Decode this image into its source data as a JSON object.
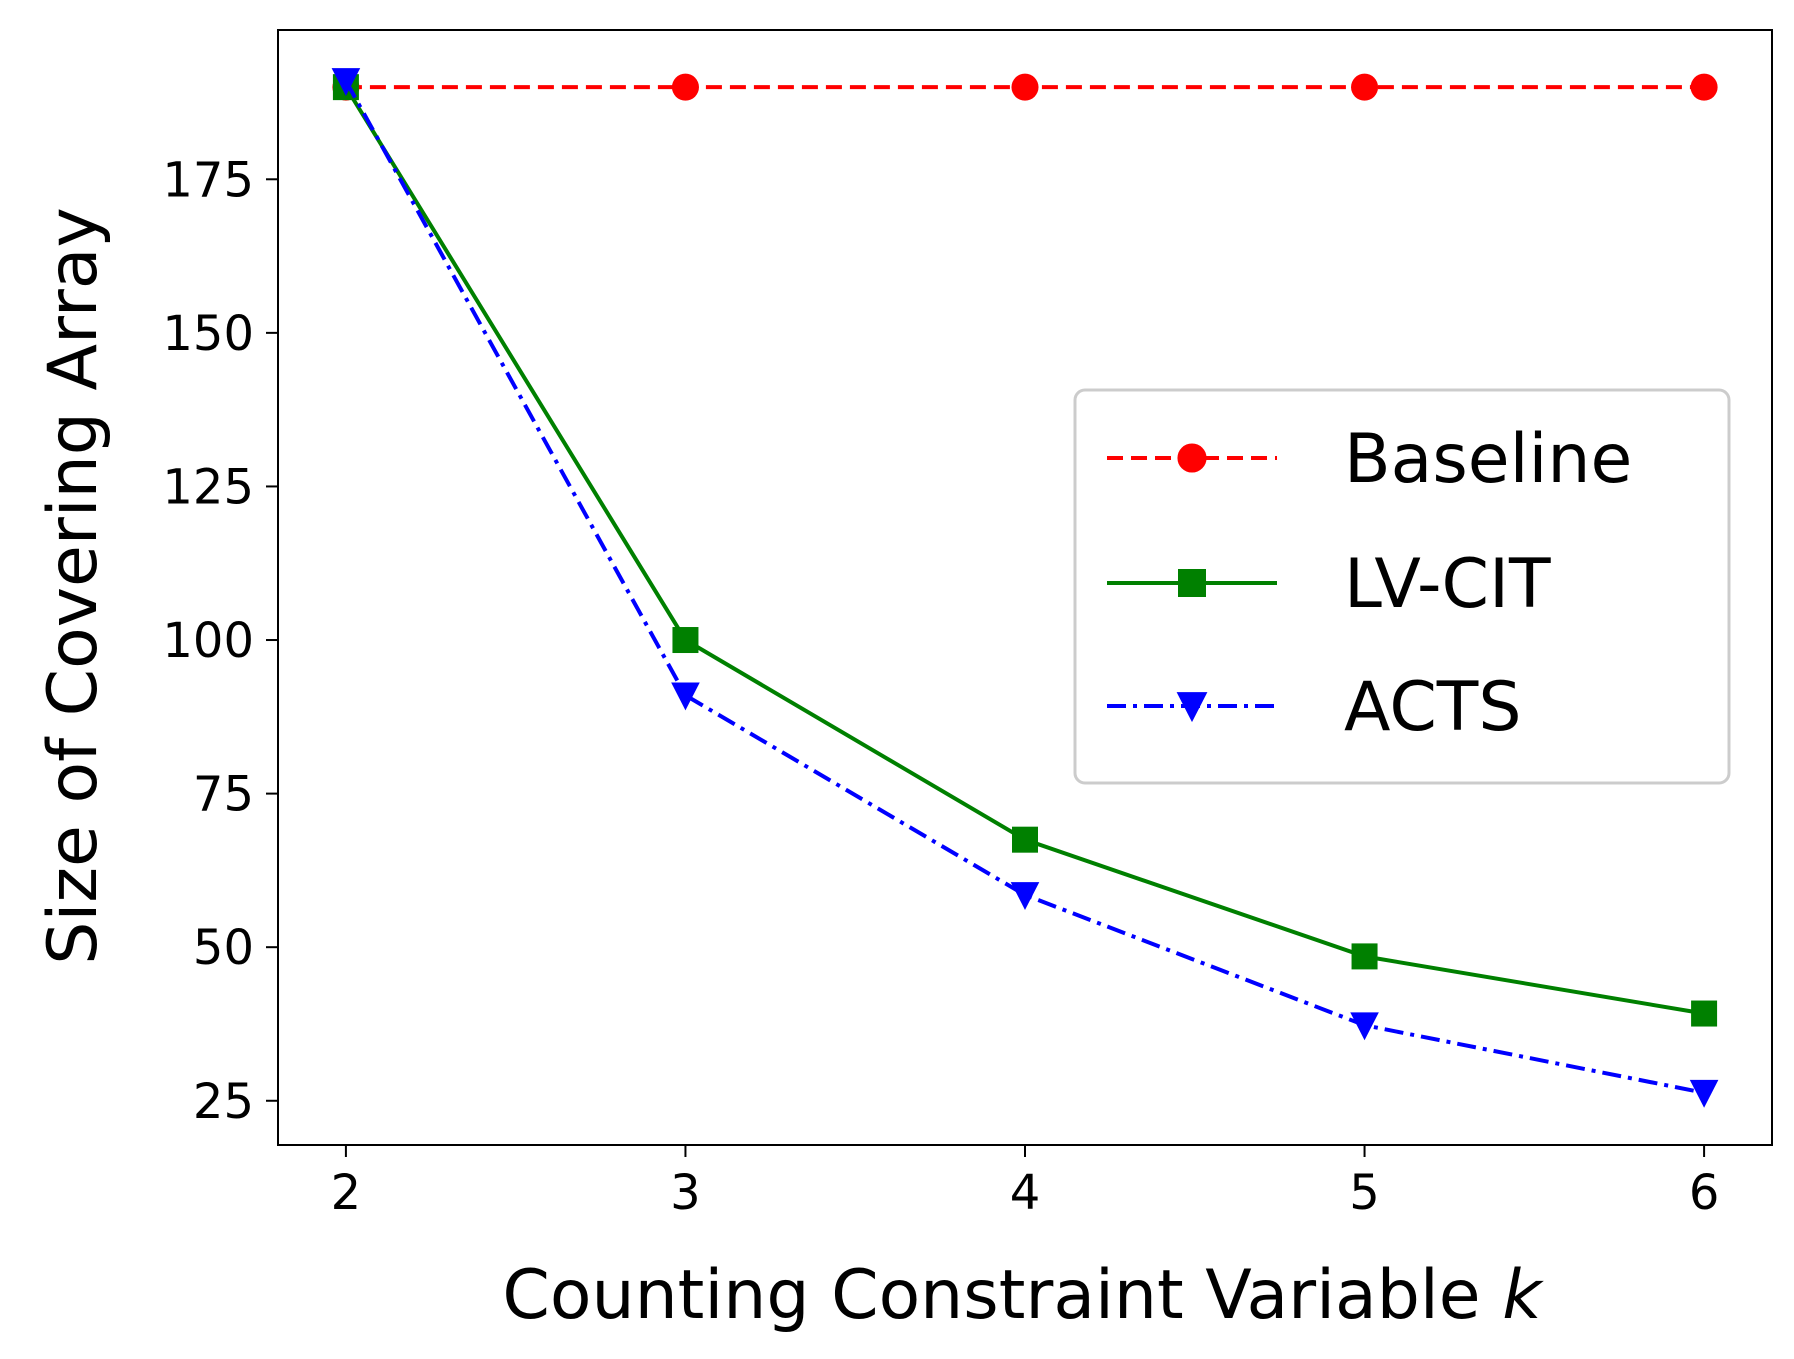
{
  "chart_data": {
    "type": "line",
    "xlabel": "Counting Constraint Variable",
    "xlabel_var": "k",
    "ylabel": "Size of Covering Array",
    "x": [
      2,
      3,
      4,
      5,
      6
    ],
    "xticks": [
      "2",
      "3",
      "4",
      "5",
      "6"
    ],
    "yticks": [
      "25",
      "50",
      "75",
      "100",
      "125",
      "150",
      "175"
    ],
    "xlim": [
      1.8,
      6.2
    ],
    "ylim": [
      17.8,
      199.3
    ],
    "grid": false,
    "legend_position": "center-right",
    "series": [
      {
        "name": "Baseline",
        "values": [
          190,
          190,
          190,
          190,
          190
        ],
        "color": "#ff0000",
        "line_style": "dashed",
        "marker": "circle"
      },
      {
        "name": "LV-CIT",
        "values": [
          190,
          100,
          67.5,
          48.5,
          39.2
        ],
        "color": "#008000",
        "line_style": "solid",
        "marker": "square"
      },
      {
        "name": "ACTS",
        "values": [
          191,
          91,
          58.5,
          37.3,
          26.3
        ],
        "color": "#0000ff",
        "line_style": "dashdot",
        "marker": "triangle-down"
      }
    ]
  }
}
